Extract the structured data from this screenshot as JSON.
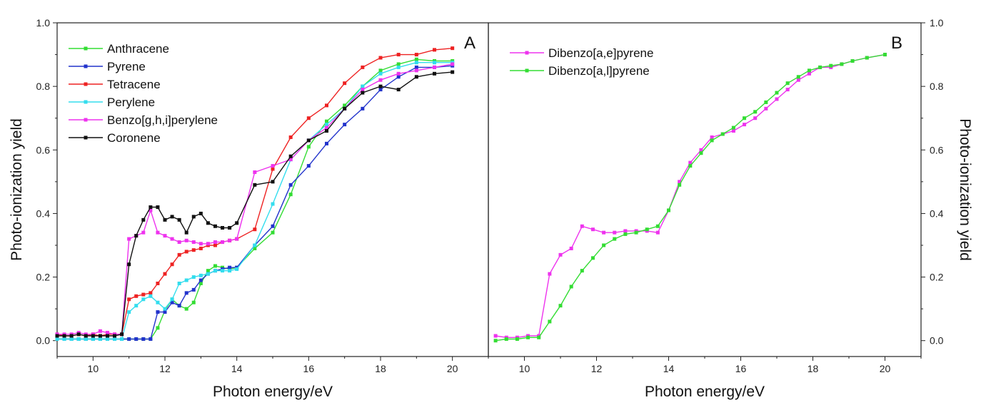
{
  "chart_data": [
    {
      "type": "line",
      "panel_label": "A",
      "xlabel": "Photon energy/eV",
      "ylabel": "Photo-ionization yield",
      "xlim": [
        9,
        21
      ],
      "ylim": [
        -0.05,
        1.0
      ],
      "xticks": [
        10,
        12,
        14,
        16,
        18,
        20
      ],
      "yticks": [
        0.0,
        0.2,
        0.4,
        0.6,
        0.8,
        1.0
      ],
      "legend_position": "top-left",
      "grid": false,
      "series": [
        {
          "name": "Anthracene",
          "color": "#33dd33",
          "x": [
            9,
            9.2,
            9.4,
            9.6,
            9.8,
            10,
            10.2,
            10.4,
            10.6,
            10.8,
            11,
            11.2,
            11.4,
            11.6,
            11.8,
            12,
            12.2,
            12.4,
            12.6,
            12.8,
            13,
            13.2,
            13.4,
            13.6,
            13.8,
            14,
            14.5,
            15,
            15.5,
            16,
            16.5,
            17,
            17.5,
            18,
            18.5,
            19,
            19.5,
            20
          ],
          "y": [
            0.005,
            0.005,
            0.005,
            0.005,
            0.005,
            0.005,
            0.005,
            0.005,
            0.005,
            0.005,
            0.005,
            0.005,
            0.005,
            0.005,
            0.04,
            0.095,
            0.13,
            0.11,
            0.1,
            0.12,
            0.18,
            0.22,
            0.235,
            0.23,
            0.225,
            0.23,
            0.29,
            0.34,
            0.46,
            0.61,
            0.69,
            0.74,
            0.8,
            0.85,
            0.87,
            0.885,
            0.88,
            0.88
          ]
        },
        {
          "name": "Pyrene",
          "color": "#2233cc",
          "x": [
            9,
            9.2,
            9.4,
            9.6,
            9.8,
            10,
            10.2,
            10.4,
            10.6,
            10.8,
            11,
            11.2,
            11.4,
            11.6,
            11.8,
            12,
            12.2,
            12.4,
            12.6,
            12.8,
            13,
            13.2,
            13.4,
            13.6,
            13.8,
            14,
            14.5,
            15,
            15.5,
            16,
            16.5,
            17,
            17.5,
            18,
            18.5,
            19,
            19.5,
            20
          ],
          "y": [
            0.005,
            0.005,
            0.005,
            0.005,
            0.005,
            0.005,
            0.005,
            0.005,
            0.005,
            0.005,
            0.005,
            0.005,
            0.005,
            0.005,
            0.09,
            0.09,
            0.12,
            0.11,
            0.15,
            0.16,
            0.19,
            0.21,
            0.22,
            0.225,
            0.23,
            0.23,
            0.3,
            0.36,
            0.49,
            0.55,
            0.62,
            0.68,
            0.73,
            0.79,
            0.83,
            0.86,
            0.86,
            0.865
          ]
        },
        {
          "name": "Tetracene",
          "color": "#ee2222",
          "x": [
            9,
            9.2,
            9.4,
            9.6,
            9.8,
            10,
            10.2,
            10.4,
            10.6,
            10.8,
            11,
            11.2,
            11.4,
            11.6,
            11.8,
            12,
            12.2,
            12.4,
            12.6,
            12.8,
            13,
            13.2,
            13.4,
            13.6,
            13.8,
            14,
            14.5,
            15,
            15.5,
            16,
            16.5,
            17,
            17.5,
            18,
            18.5,
            19,
            19.5,
            20
          ],
          "y": [
            0.02,
            0.015,
            0.015,
            0.02,
            0.015,
            0.02,
            0.015,
            0.02,
            0.02,
            0.02,
            0.13,
            0.14,
            0.145,
            0.15,
            0.18,
            0.21,
            0.24,
            0.27,
            0.28,
            0.285,
            0.29,
            0.3,
            0.3,
            0.31,
            0.315,
            0.32,
            0.35,
            0.54,
            0.64,
            0.7,
            0.74,
            0.81,
            0.86,
            0.89,
            0.9,
            0.9,
            0.915,
            0.92
          ]
        },
        {
          "name": "Perylene",
          "color": "#33ddee",
          "x": [
            9,
            9.2,
            9.4,
            9.6,
            9.8,
            10,
            10.2,
            10.4,
            10.6,
            10.8,
            11,
            11.2,
            11.4,
            11.6,
            11.8,
            12,
            12.2,
            12.4,
            12.6,
            12.8,
            13,
            13.2,
            13.4,
            13.6,
            13.8,
            14,
            14.5,
            15,
            15.5,
            16,
            16.5,
            17,
            17.5,
            18,
            18.5,
            19,
            19.5,
            20
          ],
          "y": [
            0.005,
            0.005,
            0.005,
            0.005,
            0.005,
            0.005,
            0.005,
            0.005,
            0.005,
            0.005,
            0.09,
            0.11,
            0.13,
            0.14,
            0.12,
            0.1,
            0.13,
            0.18,
            0.19,
            0.2,
            0.205,
            0.21,
            0.22,
            0.22,
            0.22,
            0.225,
            0.3,
            0.43,
            0.57,
            0.63,
            0.68,
            0.73,
            0.8,
            0.84,
            0.86,
            0.875,
            0.875,
            0.875
          ]
        },
        {
          "name": "Benzo[g,h,i]perylene",
          "color": "#ee33ee",
          "x": [
            9,
            9.2,
            9.4,
            9.6,
            9.8,
            10,
            10.2,
            10.4,
            10.6,
            10.8,
            11,
            11.2,
            11.4,
            11.6,
            11.8,
            12,
            12.2,
            12.4,
            12.6,
            12.8,
            13,
            13.2,
            13.4,
            13.6,
            13.8,
            14,
            14.5,
            15,
            15.5,
            16,
            16.5,
            17,
            17.5,
            18,
            18.5,
            19,
            19.5,
            20
          ],
          "y": [
            0.02,
            0.02,
            0.02,
            0.025,
            0.02,
            0.02,
            0.03,
            0.025,
            0.02,
            0.02,
            0.32,
            0.33,
            0.34,
            0.41,
            0.34,
            0.33,
            0.32,
            0.31,
            0.315,
            0.31,
            0.305,
            0.305,
            0.31,
            0.31,
            0.315,
            0.32,
            0.53,
            0.55,
            0.57,
            0.63,
            0.67,
            0.73,
            0.79,
            0.82,
            0.84,
            0.85,
            0.86,
            0.87
          ]
        },
        {
          "name": "Coronene",
          "color": "#111111",
          "x": [
            9,
            9.2,
            9.4,
            9.6,
            9.8,
            10,
            10.2,
            10.4,
            10.6,
            10.8,
            11,
            11.2,
            11.4,
            11.6,
            11.8,
            12,
            12.2,
            12.4,
            12.6,
            12.8,
            13,
            13.2,
            13.4,
            13.6,
            13.8,
            14,
            14.5,
            15,
            15.5,
            16,
            16.5,
            17,
            17.5,
            18,
            18.5,
            19,
            19.5,
            20
          ],
          "y": [
            0.015,
            0.015,
            0.015,
            0.02,
            0.015,
            0.015,
            0.015,
            0.015,
            0.015,
            0.02,
            0.24,
            0.33,
            0.38,
            0.42,
            0.42,
            0.38,
            0.39,
            0.38,
            0.34,
            0.39,
            0.4,
            0.37,
            0.36,
            0.355,
            0.355,
            0.37,
            0.49,
            0.5,
            0.58,
            0.63,
            0.66,
            0.73,
            0.78,
            0.8,
            0.79,
            0.83,
            0.84,
            0.845
          ]
        }
      ]
    },
    {
      "type": "line",
      "panel_label": "B",
      "xlabel": "Photon energy/eV",
      "ylabel": "Photo-ionization yield",
      "xlim": [
        9,
        21
      ],
      "ylim": [
        -0.05,
        1.0
      ],
      "xticks": [
        10,
        12,
        14,
        16,
        18,
        20
      ],
      "yticks": [
        0.0,
        0.2,
        0.4,
        0.6,
        0.8,
        1.0
      ],
      "legend_position": "top-left",
      "grid": false,
      "series": [
        {
          "name": "Dibenzo[a,e]pyrene",
          "color": "#ee33ee",
          "x": [
            9.2,
            9.5,
            9.8,
            10.1,
            10.4,
            10.7,
            11.0,
            11.3,
            11.6,
            11.9,
            12.2,
            12.5,
            12.8,
            13.1,
            13.4,
            13.7,
            14.0,
            14.3,
            14.6,
            14.9,
            15.2,
            15.5,
            15.8,
            16.1,
            16.4,
            16.7,
            17.0,
            17.3,
            17.6,
            17.9,
            18.2,
            18.5,
            18.8,
            19.1,
            19.5,
            20
          ],
          "y": [
            0.015,
            0.01,
            0.01,
            0.015,
            0.015,
            0.21,
            0.27,
            0.29,
            0.36,
            0.35,
            0.34,
            0.34,
            0.345,
            0.345,
            0.345,
            0.34,
            0.41,
            0.5,
            0.56,
            0.6,
            0.64,
            0.65,
            0.66,
            0.68,
            0.7,
            0.73,
            0.76,
            0.79,
            0.82,
            0.84,
            0.86,
            0.86,
            0.87,
            0.88,
            0.89,
            0.9
          ]
        },
        {
          "name": "Dibenzo[a,l]pyrene",
          "color": "#33dd33",
          "x": [
            9.2,
            9.5,
            9.8,
            10.1,
            10.4,
            10.7,
            11.0,
            11.3,
            11.6,
            11.9,
            12.2,
            12.5,
            12.8,
            13.1,
            13.4,
            13.7,
            14.0,
            14.3,
            14.6,
            14.9,
            15.2,
            15.5,
            15.8,
            16.1,
            16.4,
            16.7,
            17.0,
            17.3,
            17.6,
            17.9,
            18.2,
            18.5,
            18.8,
            19.1,
            19.5,
            20
          ],
          "y": [
            0.0,
            0.005,
            0.005,
            0.01,
            0.01,
            0.06,
            0.11,
            0.17,
            0.22,
            0.26,
            0.3,
            0.32,
            0.335,
            0.34,
            0.35,
            0.36,
            0.41,
            0.49,
            0.55,
            0.59,
            0.63,
            0.65,
            0.67,
            0.7,
            0.72,
            0.75,
            0.78,
            0.81,
            0.83,
            0.85,
            0.86,
            0.865,
            0.87,
            0.88,
            0.89,
            0.9
          ]
        }
      ]
    }
  ]
}
